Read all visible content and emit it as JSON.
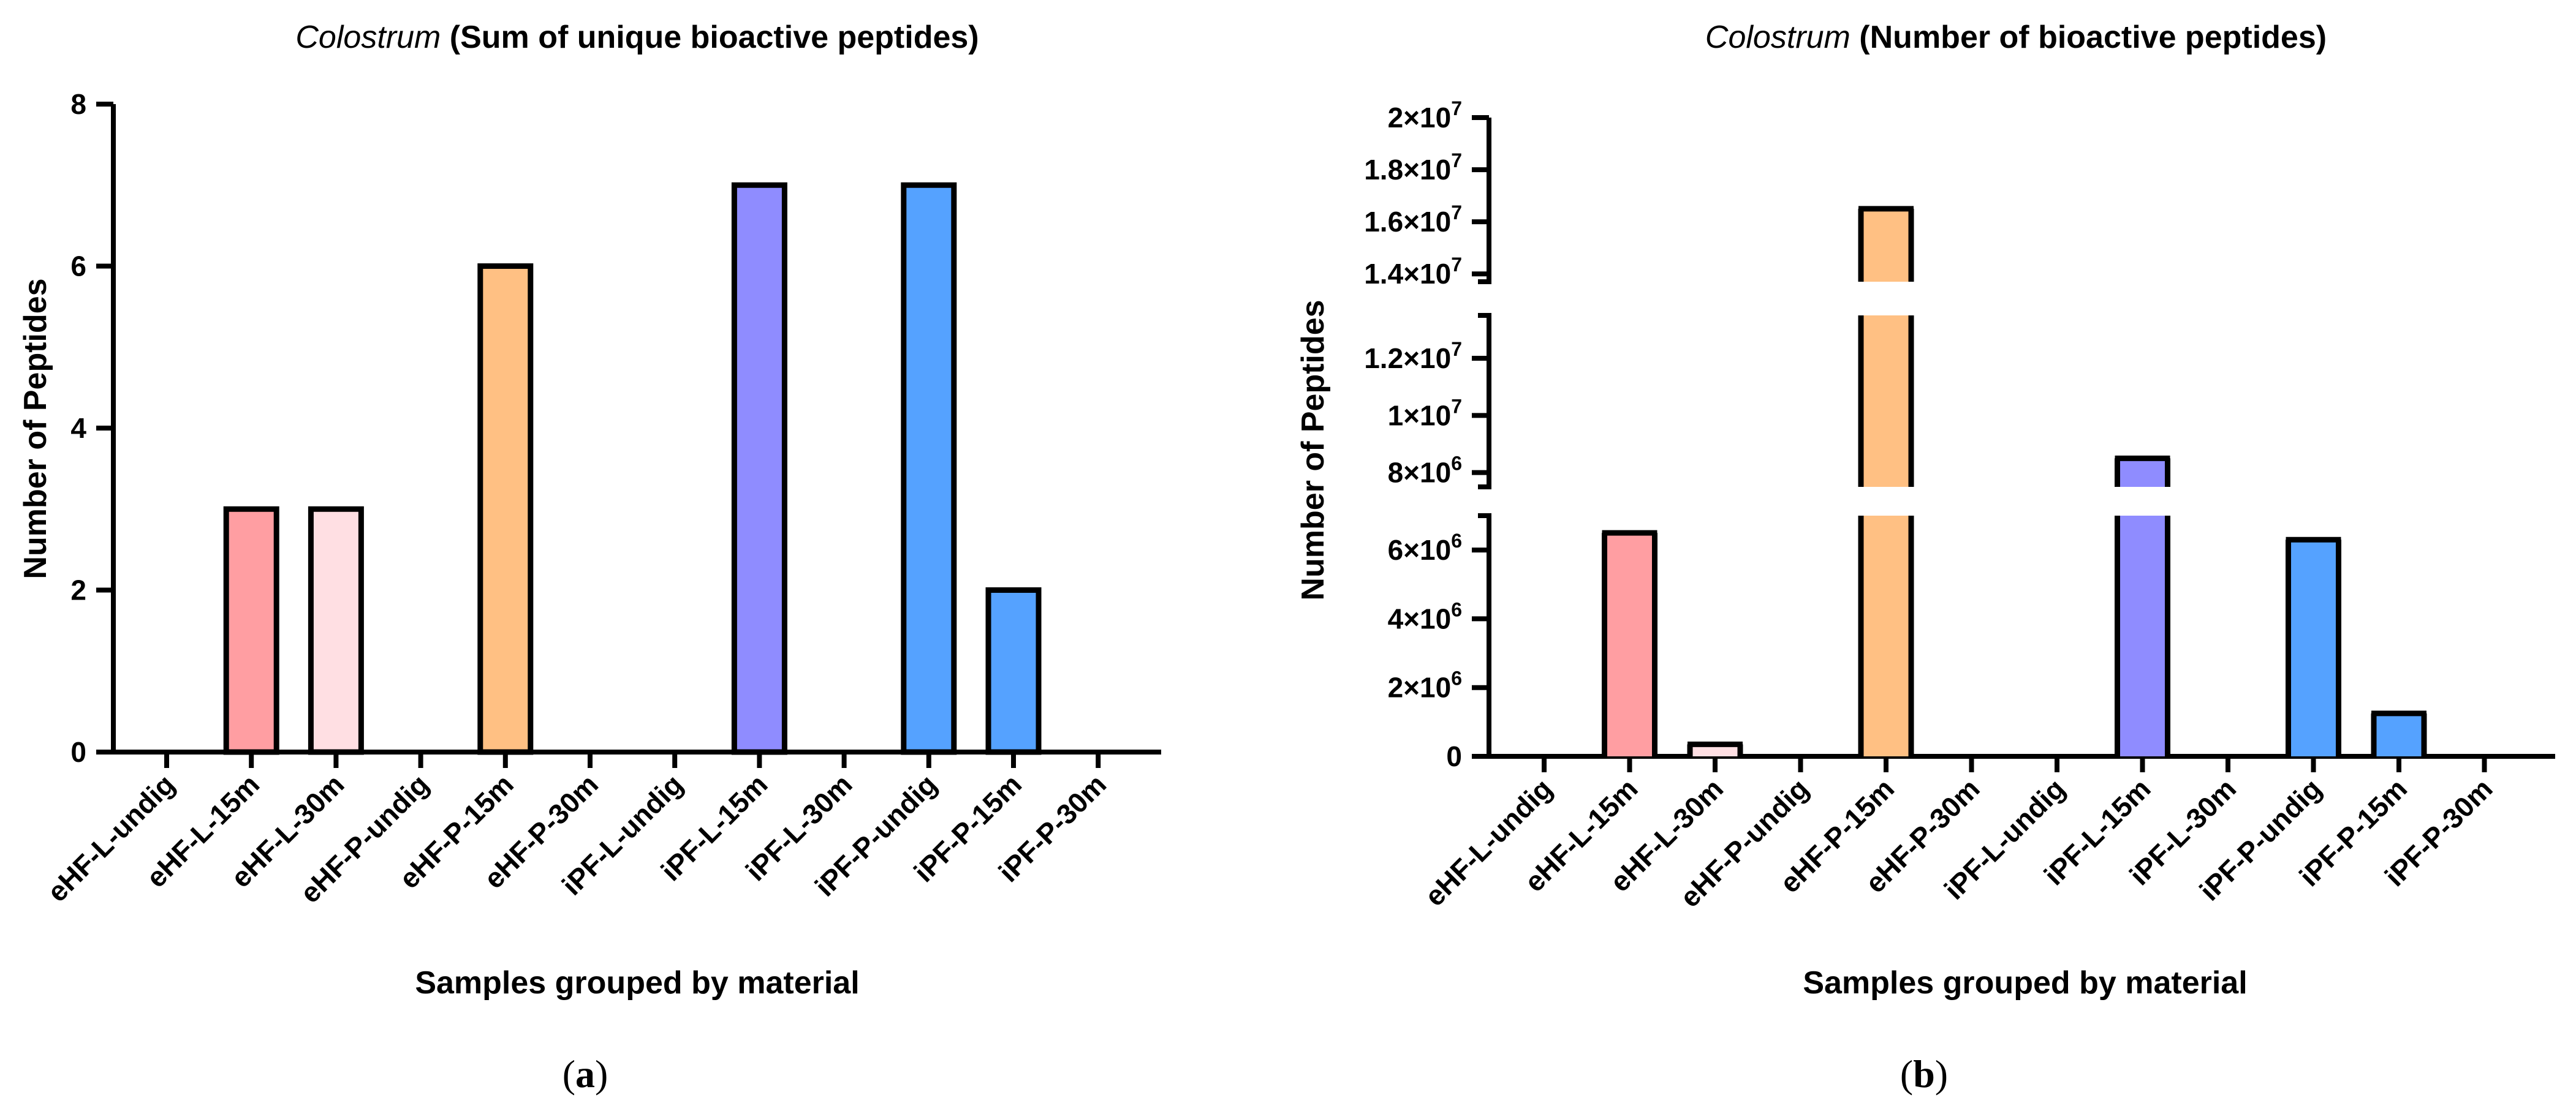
{
  "chart_data": [
    {
      "type": "bar",
      "title_italic": "Colostrum",
      "title_bold": " (Sum of unique bioactive peptides)",
      "xlabel": "Samples grouped by material",
      "ylabel": "Number of Peptides",
      "panel_label": "a",
      "ylim": [
        0,
        8
      ],
      "yticks": [
        {
          "value": 0,
          "label": "0"
        },
        {
          "value": 2,
          "label": "2"
        },
        {
          "value": 4,
          "label": "4"
        },
        {
          "value": 6,
          "label": "6"
        },
        {
          "value": 8,
          "label": "8"
        }
      ],
      "categories": [
        "eHF-L-undig",
        "eHF-L-15m",
        "eHF-L-30m",
        "eHF-P-undig",
        "eHF-P-15m",
        "eHF-P-30m",
        "iPF-L-undig",
        "iPF-L-15m",
        "iPF-L-30m",
        "iPF-P-undig",
        "iPF-P-15m",
        "iPF-P-30m"
      ],
      "values": [
        0,
        3,
        3,
        0,
        6,
        0,
        0,
        7,
        0,
        7,
        2,
        0
      ],
      "colors": [
        "#ff9ea2",
        "#ff9ea2",
        "#ffdfe3",
        "#ffc083",
        "#ffc083",
        "#ffc083",
        "#8f8cff",
        "#8f8cff",
        "#8f8cff",
        "#55a2ff",
        "#55a2ff",
        "#93c4ff"
      ]
    },
    {
      "type": "bar",
      "title_italic": "Colostrum",
      "title_bold": " (Number of bioactive peptides)",
      "xlabel": "Samples grouped by material",
      "ylabel": "Number of Peptides",
      "panel_label": "b",
      "axis_breaks": [
        [
          7000000,
          7500000
        ],
        [
          13500000,
          13700000
        ]
      ],
      "ylim": [
        0,
        20000000
      ],
      "yticks": [
        {
          "value": 0,
          "label": "0"
        },
        {
          "value": 2000000,
          "label": "2×10",
          "exp": "6"
        },
        {
          "value": 4000000,
          "label": "4×10",
          "exp": "6"
        },
        {
          "value": 6000000,
          "label": "6×10",
          "exp": "6"
        },
        {
          "value": 8000000,
          "label": "8×10",
          "exp": "6"
        },
        {
          "value": 10000000,
          "label": "1×10",
          "exp": "7"
        },
        {
          "value": 12000000,
          "label": "1.2×10",
          "exp": "7"
        },
        {
          "value": 14000000,
          "label": "1.4×10",
          "exp": "7"
        },
        {
          "value": 16000000,
          "label": "1.6×10",
          "exp": "7"
        },
        {
          "value": 18000000,
          "label": "1.8×10",
          "exp": "7"
        },
        {
          "value": 20000000,
          "label": "2×10",
          "exp": "7"
        }
      ],
      "categories": [
        "eHF-L-undig",
        "eHF-L-15m",
        "eHF-L-30m",
        "eHF-P-undig",
        "eHF-P-15m",
        "eHF-P-30m",
        "iPF-L-undig",
        "iPF-L-15m",
        "iPF-L-30m",
        "iPF-P-undig",
        "iPF-P-15m",
        "iPF-P-30m"
      ],
      "values": [
        0,
        6500000,
        350000,
        0,
        16500000,
        0,
        0,
        8500000,
        0,
        6300000,
        1250000,
        0
      ],
      "colors": [
        "#ff9ea2",
        "#ff9ea2",
        "#ffdfe3",
        "#ffc083",
        "#ffc083",
        "#ffc083",
        "#8f8cff",
        "#8f8cff",
        "#8f8cff",
        "#55a2ff",
        "#55a2ff",
        "#93c4ff"
      ]
    }
  ]
}
